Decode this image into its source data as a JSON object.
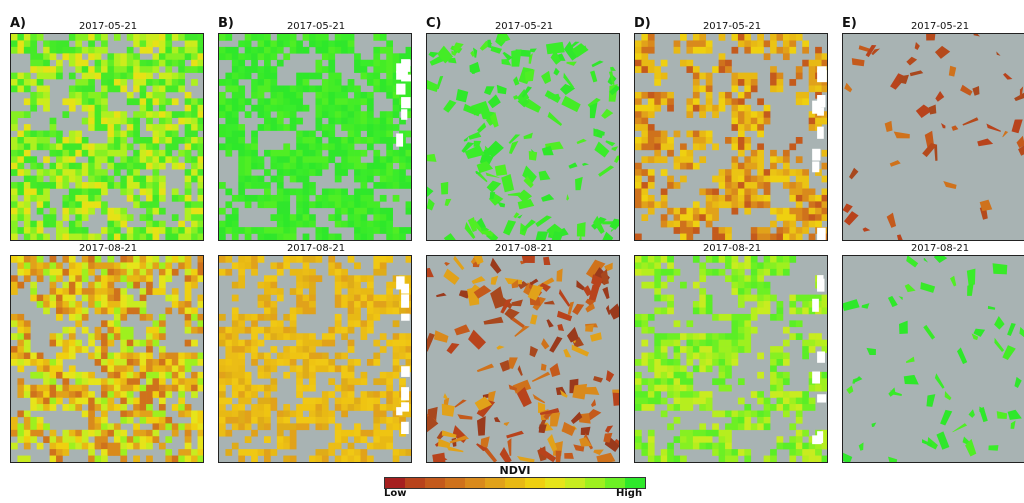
{
  "figure": {
    "legend": {
      "title": "NDVI",
      "low_label": "Low",
      "high_label": "High",
      "colors": [
        "#a61f1f",
        "#b8431c",
        "#c45a1c",
        "#cf721c",
        "#d98a1c",
        "#e1a21a",
        "#e8b914",
        "#efd010",
        "#e6e41a",
        "#c8ec20",
        "#9ef01f",
        "#6cf024",
        "#2ee82a"
      ]
    },
    "panels": [
      {
        "label": "A)",
        "top_date": "2017-05-21",
        "bottom_date": "2017-08-21",
        "top_palette": "green-mix",
        "bottom_palette": "yellow-orange-mix",
        "style": "pixel-grid"
      },
      {
        "label": "B)",
        "top_date": "2017-05-21",
        "bottom_date": "2017-08-21",
        "top_palette": "green",
        "bottom_palette": "yellow",
        "style": "pixel-grid"
      },
      {
        "label": "C)",
        "top_date": "2017-05-21",
        "bottom_date": "2017-08-21",
        "top_palette": "green",
        "bottom_palette": "brown-orange",
        "style": "field-polygons"
      },
      {
        "label": "D)",
        "top_date": "2017-05-21",
        "bottom_date": "2017-08-21",
        "top_palette": "orange-yellow",
        "bottom_palette": "green-yellow",
        "style": "pixel-grid-sparse"
      },
      {
        "label": "E)",
        "top_date": "2017-05-21",
        "bottom_date": "2017-08-21",
        "top_palette": "brown",
        "bottom_palette": "green",
        "style": "field-polygons-sparse"
      }
    ],
    "colors": {
      "no_data": "#a8b3b3",
      "masked": "#ffffff"
    }
  }
}
